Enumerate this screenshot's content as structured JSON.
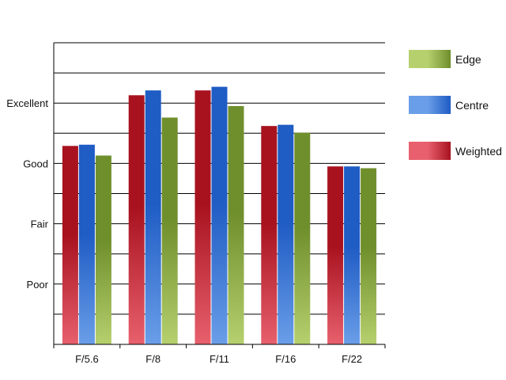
{
  "chart_data": {
    "type": "bar",
    "title": "",
    "xlabel": "",
    "ylabel": "",
    "categories": [
      "F/5.6",
      "F/8",
      "F/11",
      "F/16",
      "F/22"
    ],
    "ylim": [
      0,
      5
    ],
    "y_ticks": [
      {
        "value": 1,
        "label": "Poor"
      },
      {
        "value": 2,
        "label": "Fair"
      },
      {
        "value": 3,
        "label": "Good"
      },
      {
        "value": 4,
        "label": "Excellent"
      }
    ],
    "grid": true,
    "legend_position": "right",
    "series": [
      {
        "name": "Weighted",
        "values": [
          3.29,
          4.13,
          4.21,
          3.62,
          2.95
        ],
        "color_light": "#e8606d",
        "color_dark": "#a8121f"
      },
      {
        "name": "Centre",
        "values": [
          3.31,
          4.21,
          4.27,
          3.64,
          2.95
        ],
        "color_light": "#6a9ee8",
        "color_dark": "#1f5cc4"
      },
      {
        "name": "Edge",
        "values": [
          3.13,
          3.76,
          3.95,
          3.51,
          2.92
        ],
        "color_light": "#b6d06e",
        "color_dark": "#6f8f2c"
      }
    ],
    "legend_order": [
      "Edge",
      "Centre",
      "Weighted"
    ]
  }
}
